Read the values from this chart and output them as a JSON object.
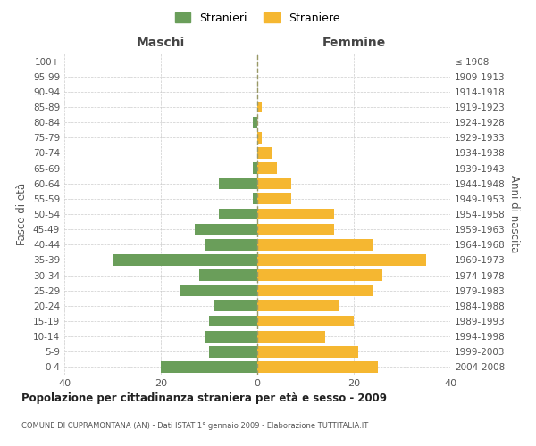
{
  "age_groups": [
    "100+",
    "95-99",
    "90-94",
    "85-89",
    "80-84",
    "75-79",
    "70-74",
    "65-69",
    "60-64",
    "55-59",
    "50-54",
    "45-49",
    "40-44",
    "35-39",
    "30-34",
    "25-29",
    "20-24",
    "15-19",
    "10-14",
    "5-9",
    "0-4"
  ],
  "birth_years": [
    "≤ 1908",
    "1909-1913",
    "1914-1918",
    "1919-1923",
    "1924-1928",
    "1929-1933",
    "1934-1938",
    "1939-1943",
    "1944-1948",
    "1949-1953",
    "1954-1958",
    "1959-1963",
    "1964-1968",
    "1969-1973",
    "1974-1978",
    "1979-1983",
    "1984-1988",
    "1989-1993",
    "1994-1998",
    "1999-2003",
    "2004-2008"
  ],
  "maschi": [
    0,
    0,
    0,
    0,
    1,
    0,
    0,
    1,
    8,
    1,
    8,
    13,
    11,
    30,
    12,
    16,
    9,
    10,
    11,
    10,
    20
  ],
  "femmine": [
    0,
    0,
    0,
    1,
    0,
    1,
    3,
    4,
    7,
    7,
    16,
    16,
    24,
    35,
    26,
    24,
    17,
    20,
    14,
    21,
    25
  ],
  "color_maschi": "#6a9e5a",
  "color_femmine": "#f5b731",
  "title": "Popolazione per cittadinanza straniera per età e sesso - 2009",
  "subtitle": "COMUNE DI CUPRAMONTANA (AN) - Dati ISTAT 1° gennaio 2009 - Elaborazione TUTTITALIA.IT",
  "xlabel_left": "Maschi",
  "xlabel_right": "Femmine",
  "ylabel_left": "Fasce di età",
  "ylabel_right": "Anni di nascita",
  "legend_maschi": "Stranieri",
  "legend_femmine": "Straniere",
  "xlim": 40,
  "background_color": "#ffffff",
  "grid_color": "#cccccc",
  "bar_height": 0.75
}
